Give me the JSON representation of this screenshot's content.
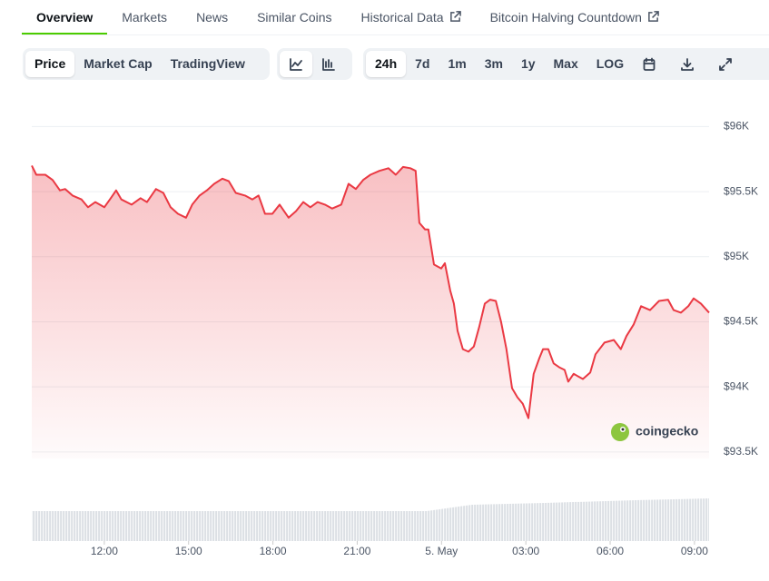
{
  "tabs": {
    "items": [
      "Overview",
      "Markets",
      "News",
      "Similar Coins",
      "Historical Data",
      "Bitcoin Halving Countdown"
    ]
  },
  "toolbar": {
    "views": [
      "Price",
      "Market Cap",
      "TradingView"
    ],
    "ranges": [
      "24h",
      "7d",
      "1m",
      "3m",
      "1y",
      "Max",
      "LOG"
    ]
  },
  "watermark": "coingecko",
  "chart_data": {
    "type": "area",
    "color": "#ea3943",
    "x": [
      9.42,
      9.58,
      9.9,
      10.16,
      10.42,
      10.61,
      10.87,
      11.19,
      11.42,
      11.68,
      12.0,
      12.23,
      12.42,
      12.61,
      12.97,
      13.29,
      13.52,
      13.84,
      14.1,
      14.36,
      14.62,
      14.91,
      15.13,
      15.39,
      15.65,
      15.91,
      16.2,
      16.43,
      16.68,
      17.01,
      17.27,
      17.49,
      17.72,
      17.98,
      18.24,
      18.56,
      18.82,
      19.08,
      19.33,
      19.59,
      19.85,
      20.11,
      20.43,
      20.69,
      20.95,
      21.21,
      21.47,
      21.79,
      22.11,
      22.37,
      22.63,
      22.89,
      23.08,
      23.21,
      23.41,
      23.53,
      23.73,
      23.99,
      24.12,
      24.31,
      24.44,
      24.57,
      24.76,
      24.96,
      25.15,
      25.34,
      25.54,
      25.73,
      25.93,
      26.12,
      26.31,
      26.51,
      26.7,
      26.89,
      27.09,
      27.28,
      27.48,
      27.61,
      27.8,
      27.99,
      28.19,
      28.38,
      28.51,
      28.7,
      29.03,
      29.29,
      29.48,
      29.8,
      30.13,
      30.38,
      30.58,
      30.84,
      31.1,
      31.42,
      31.74,
      32.06,
      32.26,
      32.52,
      32.78,
      32.97,
      33.23,
      33.52
    ],
    "values": [
      95700,
      95630,
      95630,
      95590,
      95510,
      95520,
      95470,
      95440,
      95380,
      95420,
      95380,
      95450,
      95510,
      95440,
      95400,
      95450,
      95420,
      95520,
      95490,
      95380,
      95330,
      95300,
      95400,
      95470,
      95510,
      95560,
      95600,
      95580,
      95490,
      95470,
      95440,
      95470,
      95330,
      95330,
      95400,
      95300,
      95350,
      95420,
      95380,
      95420,
      95400,
      95370,
      95400,
      95560,
      95520,
      95590,
      95630,
      95660,
      95680,
      95630,
      95690,
      95680,
      95660,
      95260,
      95210,
      95210,
      94940,
      94910,
      94950,
      94740,
      94640,
      94430,
      94290,
      94270,
      94310,
      94460,
      94640,
      94670,
      94660,
      94500,
      94290,
      93990,
      93920,
      93870,
      93760,
      94100,
      94220,
      94290,
      94290,
      94180,
      94150,
      94130,
      94040,
      94100,
      94060,
      94110,
      94250,
      94340,
      94360,
      94290,
      94390,
      94480,
      94620,
      94590,
      94660,
      94670,
      94590,
      94570,
      94620,
      94680,
      94640,
      94570
    ],
    "xlim": [
      9.42,
      33.52
    ],
    "xticks": [
      {
        "value": 12,
        "label": "12:00"
      },
      {
        "value": 15,
        "label": "15:00"
      },
      {
        "value": 18,
        "label": "18:00"
      },
      {
        "value": 21,
        "label": "21:00"
      },
      {
        "value": 24,
        "label": "5. May"
      },
      {
        "value": 27,
        "label": "03:00"
      },
      {
        "value": 30,
        "label": "06:00"
      },
      {
        "value": 33,
        "label": "09:00"
      }
    ],
    "ylim": [
      93450,
      96240
    ],
    "yticks": [
      {
        "value": 93500,
        "label": "$93.5K"
      },
      {
        "value": 94000,
        "label": "$94K"
      },
      {
        "value": 94500,
        "label": "$94.5K"
      },
      {
        "value": 95000,
        "label": "$95K"
      },
      {
        "value": 95500,
        "label": "$95.5K"
      },
      {
        "value": 96000,
        "label": "$96K"
      }
    ],
    "grid": true
  }
}
